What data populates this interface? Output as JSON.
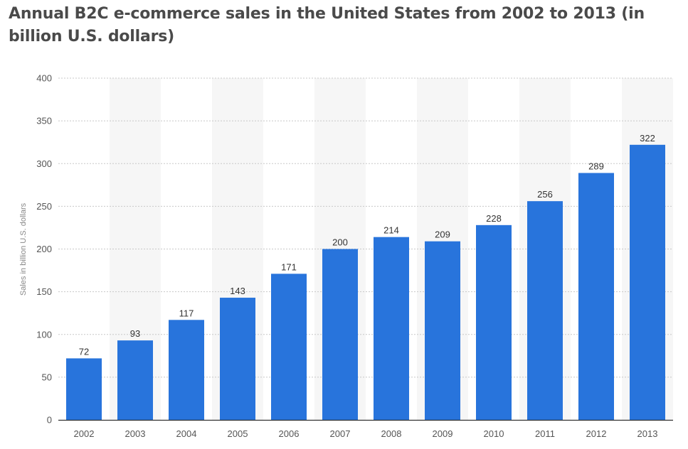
{
  "chart_data": {
    "type": "bar",
    "title": "Annual B2C e-commerce sales in the United States from 2002 to 2013 (in billion U.S. dollars)",
    "xlabel": "",
    "ylabel": "Sales in billion U.S. dollars",
    "categories": [
      "2002",
      "2003",
      "2004",
      "2005",
      "2006",
      "2007",
      "2008",
      "2009",
      "2010",
      "2011",
      "2012",
      "2013"
    ],
    "values": [
      72,
      93,
      117,
      143,
      171,
      200,
      214,
      209,
      228,
      256,
      289,
      322
    ],
    "ylim": [
      0,
      400
    ],
    "yticks": [
      0,
      50,
      100,
      150,
      200,
      250,
      300,
      350,
      400
    ],
    "grid": true,
    "legend": "none",
    "colors": {
      "bar": "#2874dc",
      "grid": "#c8c8c8",
      "band": "#f6f6f6",
      "axis": "#333333",
      "title": "#4a4a4a"
    }
  }
}
